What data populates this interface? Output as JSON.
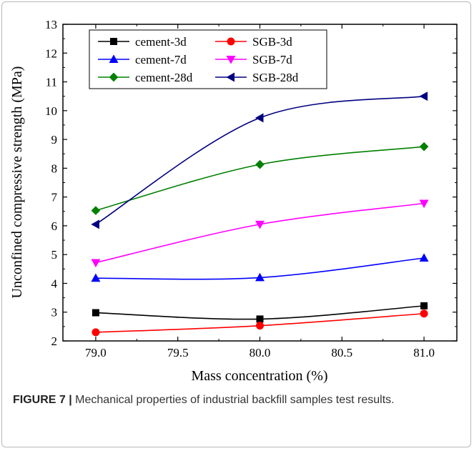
{
  "chart_data": {
    "type": "line",
    "xlabel": "Mass concentration (%)",
    "ylabel": "Unconfined compressive strength (MPa)",
    "xlim": [
      78.8,
      81.2
    ],
    "ylim": [
      2,
      13
    ],
    "x_ticks": [
      "79.0",
      "79.5",
      "80.0",
      "80.5",
      "81.0"
    ],
    "y_ticks": [
      "2",
      "3",
      "4",
      "5",
      "6",
      "7",
      "8",
      "9",
      "10",
      "11",
      "12",
      "13"
    ],
    "x": [
      79.0,
      80.0,
      81.0
    ],
    "legend_position": "top-left",
    "series": [
      {
        "name": "cement-3d",
        "values": [
          2.98,
          2.76,
          3.22
        ],
        "color": "#000000",
        "marker": "square"
      },
      {
        "name": "SGB-3d",
        "values": [
          2.3,
          2.53,
          2.95
        ],
        "color": "#ff0000",
        "marker": "circle"
      },
      {
        "name": "cement-7d",
        "values": [
          4.18,
          4.2,
          4.88
        ],
        "color": "#0000ff",
        "marker": "triangle-up"
      },
      {
        "name": "SGB-7d",
        "values": [
          4.72,
          6.05,
          6.78
        ],
        "color": "#ff00ff",
        "marker": "triangle-down"
      },
      {
        "name": "cement-28d",
        "values": [
          6.53,
          8.13,
          8.75
        ],
        "color": "#008000",
        "marker": "diamond"
      },
      {
        "name": "SGB-28d",
        "values": [
          6.05,
          9.75,
          10.5
        ],
        "color": "#000080",
        "marker": "triangle-left"
      }
    ]
  },
  "caption": {
    "label": "FIGURE 7 |",
    "text": " Mechanical properties of industrial backfill samples test results."
  }
}
